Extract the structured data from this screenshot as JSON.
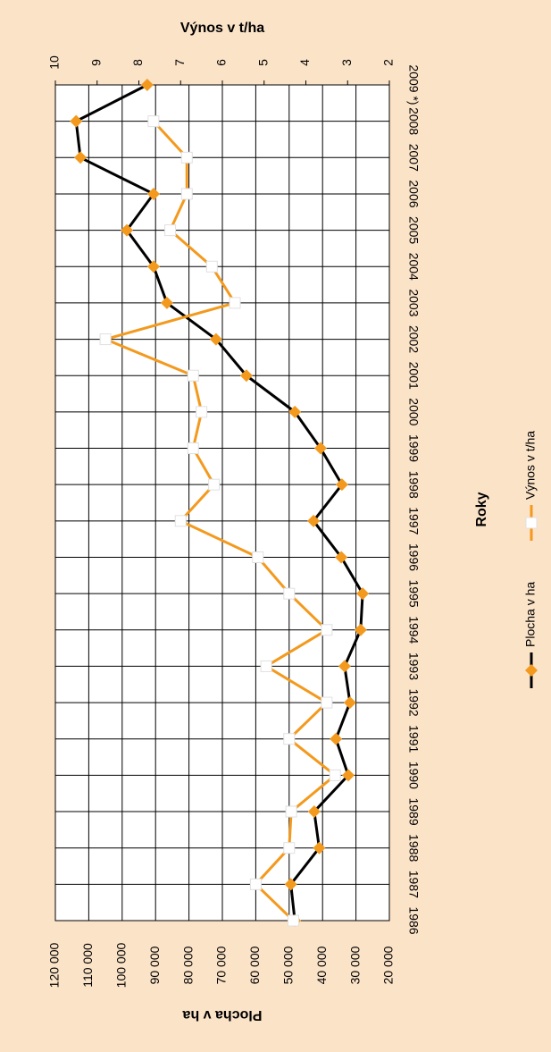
{
  "chart_data": {
    "type": "line",
    "x_label": "Roky",
    "y_label": "Plocha v ha",
    "y2_label": "Výnos v t/ha",
    "categories": [
      "1986",
      "1987",
      "1988",
      "1989",
      "1990",
      "1991",
      "1992",
      "1993",
      "1994",
      "1995",
      "1996",
      "1997",
      "1998",
      "1999",
      "2000",
      "2001",
      "2002",
      "2003",
      "2004",
      "2005",
      "2006",
      "2007",
      "2008",
      "2009 *)"
    ],
    "series": [
      {
        "name": "Plocha v ha",
        "color": "#000000",
        "marker_color": "#f39a1e",
        "values": [
          48300,
          49500,
          41000,
          42500,
          32300,
          36000,
          31800,
          33400,
          28600,
          28000,
          34400,
          42700,
          34200,
          40600,
          48300,
          62800,
          71900,
          86600,
          90600,
          98600,
          90600,
          112500,
          113800,
          92500
        ]
      },
      {
        "name": "Výnos v t/ha",
        "color": "#f39a1e",
        "marker_color": "#ffffff",
        "axis": "y2",
        "values": [
          4.3,
          5.2,
          4.4,
          4.35,
          3.3,
          4.4,
          3.5,
          4.95,
          3.5,
          4.4,
          5.15,
          7.0,
          6.2,
          6.7,
          6.5,
          6.7,
          8.8,
          5.7,
          6.25,
          7.25,
          6.85,
          6.85,
          7.65,
          null
        ]
      }
    ],
    "ylim": [
      20000,
      120000
    ],
    "yticks": [
      {
        "value": 20000,
        "label": "20 000"
      },
      {
        "value": 30000,
        "label": "30 000"
      },
      {
        "value": 40000,
        "label": "40 000"
      },
      {
        "value": 50000,
        "label": "50 000"
      },
      {
        "value": 60000,
        "label": "60 000"
      },
      {
        "value": 70000,
        "label": "70 000"
      },
      {
        "value": 80000,
        "label": "80 000"
      },
      {
        "value": 90000,
        "label": "90 000"
      },
      {
        "value": 100000,
        "label": "100 000"
      },
      {
        "value": 110000,
        "label": "110 000"
      },
      {
        "value": 120000,
        "label": "120 000"
      }
    ],
    "y2lim": [
      2,
      10
    ],
    "y2ticks": [
      2,
      3,
      4,
      5,
      6,
      7,
      8,
      9,
      10
    ],
    "grid": true
  }
}
